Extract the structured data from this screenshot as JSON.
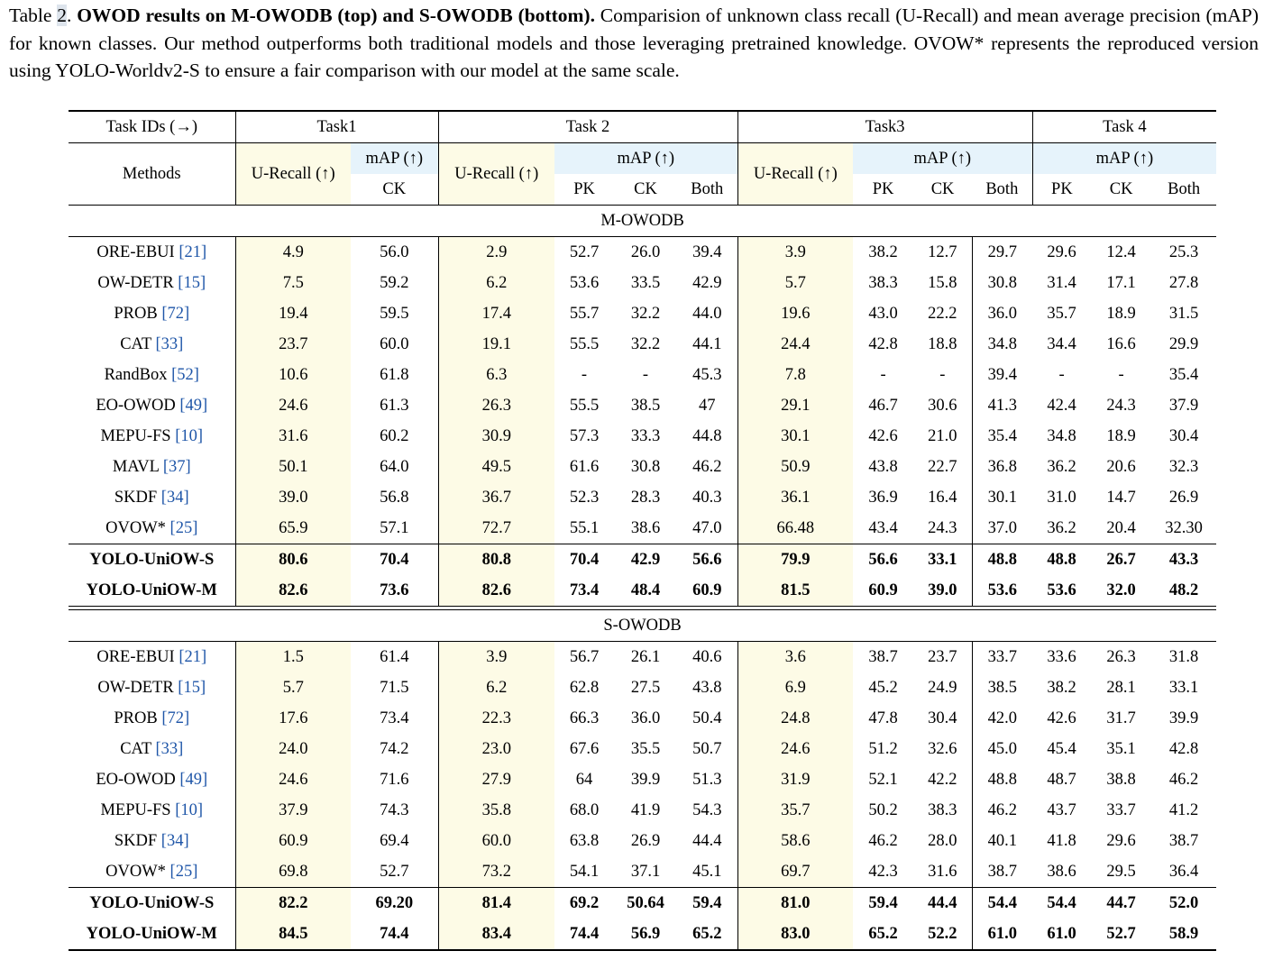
{
  "caption": {
    "label": "Table",
    "number": "2",
    "title": "OWOD results on M-OWODB (top) and S-OWODB (bottom).",
    "text": " Comparision of unknown class recall (U-Recall) and mean average precision (mAP) for known classes. Our method outperforms both traditional models and those leveraging pretrained knowledge. OVOW* represents the reproduced version using YOLO-Worldv2-S to ensure a fair comparison with our model at the same scale."
  },
  "header": {
    "task_ids": "Task IDs (→)",
    "methods": "Methods",
    "tasks": [
      "Task1",
      "Task 2",
      "Task3",
      "Task 4"
    ],
    "u_recall": "U-Recall (↑)",
    "map": "mAP (↑)",
    "pk": "PK",
    "ck": "CK",
    "both": "Both"
  },
  "sections": [
    {
      "name": "M-OWODB",
      "rows": [
        {
          "method": "ORE-EBUI",
          "ref": "[21]",
          "v": [
            "4.9",
            "56.0",
            "2.9",
            "52.7",
            "26.0",
            "39.4",
            "3.9",
            "38.2",
            "12.7",
            "29.7",
            "29.6",
            "12.4",
            "25.3"
          ]
        },
        {
          "method": "OW-DETR",
          "ref": "[15]",
          "v": [
            "7.5",
            "59.2",
            "6.2",
            "53.6",
            "33.5",
            "42.9",
            "5.7",
            "38.3",
            "15.8",
            "30.8",
            "31.4",
            "17.1",
            "27.8"
          ]
        },
        {
          "method": "PROB",
          "ref": "[72]",
          "v": [
            "19.4",
            "59.5",
            "17.4",
            "55.7",
            "32.2",
            "44.0",
            "19.6",
            "43.0",
            "22.2",
            "36.0",
            "35.7",
            "18.9",
            "31.5"
          ]
        },
        {
          "method": "CAT",
          "ref": "[33]",
          "v": [
            "23.7",
            "60.0",
            "19.1",
            "55.5",
            "32.2",
            "44.1",
            "24.4",
            "42.8",
            "18.8",
            "34.8",
            "34.4",
            "16.6",
            "29.9"
          ]
        },
        {
          "method": "RandBox",
          "ref": "[52]",
          "v": [
            "10.6",
            "61.8",
            "6.3",
            "-",
            "-",
            "45.3",
            "7.8",
            "-",
            "-",
            "39.4",
            "-",
            "-",
            "35.4"
          ]
        },
        {
          "method": "EO-OWOD",
          "ref": "[49]",
          "v": [
            "24.6",
            "61.3",
            "26.3",
            "55.5",
            "38.5",
            "47",
            "29.1",
            "46.7",
            "30.6",
            "41.3",
            "42.4",
            "24.3",
            "37.9"
          ]
        },
        {
          "method": "MEPU-FS",
          "ref": "[10]",
          "v": [
            "31.6",
            "60.2",
            "30.9",
            "57.3",
            "33.3",
            "44.8",
            "30.1",
            "42.6",
            "21.0",
            "35.4",
            "34.8",
            "18.9",
            "30.4"
          ]
        },
        {
          "method": "MAVL",
          "ref": "[37]",
          "v": [
            "50.1",
            "64.0",
            "49.5",
            "61.6",
            "30.8",
            "46.2",
            "50.9",
            "43.8",
            "22.7",
            "36.8",
            "36.2",
            "20.6",
            "32.3"
          ]
        },
        {
          "method": "SKDF",
          "ref": "[34]",
          "v": [
            "39.0",
            "56.8",
            "36.7",
            "52.3",
            "28.3",
            "40.3",
            "36.1",
            "36.9",
            "16.4",
            "30.1",
            "31.0",
            "14.7",
            "26.9"
          ]
        },
        {
          "method": "OVOW*",
          "ref": "[25]",
          "v": [
            "65.9",
            "57.1",
            "72.7",
            "55.1",
            "38.6",
            "47.0",
            "66.48",
            "43.4",
            "24.3",
            "37.0",
            "36.2",
            "20.4",
            "32.30"
          ]
        }
      ],
      "ours": [
        {
          "method": "YOLO-UniOW-S",
          "v": [
            "80.6",
            "70.4",
            "80.8",
            "70.4",
            "42.9",
            "56.6",
            "79.9",
            "56.6",
            "33.1",
            "48.8",
            "48.8",
            "26.7",
            "43.3"
          ]
        },
        {
          "method": "YOLO-UniOW-M",
          "v": [
            "82.6",
            "73.6",
            "82.6",
            "73.4",
            "48.4",
            "60.9",
            "81.5",
            "60.9",
            "39.0",
            "53.6",
            "53.6",
            "32.0",
            "48.2"
          ]
        }
      ]
    },
    {
      "name": "S-OWODB",
      "rows": [
        {
          "method": "ORE-EBUI",
          "ref": "[21]",
          "v": [
            "1.5",
            "61.4",
            "3.9",
            "56.7",
            "26.1",
            "40.6",
            "3.6",
            "38.7",
            "23.7",
            "33.7",
            "33.6",
            "26.3",
            "31.8"
          ]
        },
        {
          "method": "OW-DETR",
          "ref": "[15]",
          "v": [
            "5.7",
            "71.5",
            "6.2",
            "62.8",
            "27.5",
            "43.8",
            "6.9",
            "45.2",
            "24.9",
            "38.5",
            "38.2",
            "28.1",
            "33.1"
          ]
        },
        {
          "method": "PROB",
          "ref": "[72]",
          "v": [
            "17.6",
            "73.4",
            "22.3",
            "66.3",
            "36.0",
            "50.4",
            "24.8",
            "47.8",
            "30.4",
            "42.0",
            "42.6",
            "31.7",
            "39.9"
          ]
        },
        {
          "method": "CAT",
          "ref": "[33]",
          "v": [
            "24.0",
            "74.2",
            "23.0",
            "67.6",
            "35.5",
            "50.7",
            "24.6",
            "51.2",
            "32.6",
            "45.0",
            "45.4",
            "35.1",
            "42.8"
          ]
        },
        {
          "method": "EO-OWOD",
          "ref": "[49]",
          "v": [
            "24.6",
            "71.6",
            "27.9",
            "64",
            "39.9",
            "51.3",
            "31.9",
            "52.1",
            "42.2",
            "48.8",
            "48.7",
            "38.8",
            "46.2"
          ]
        },
        {
          "method": "MEPU-FS",
          "ref": "[10]",
          "v": [
            "37.9",
            "74.3",
            "35.8",
            "68.0",
            "41.9",
            "54.3",
            "35.7",
            "50.2",
            "38.3",
            "46.2",
            "43.7",
            "33.7",
            "41.2"
          ]
        },
        {
          "method": "SKDF",
          "ref": "[34]",
          "v": [
            "60.9",
            "69.4",
            "60.0",
            "63.8",
            "26.9",
            "44.4",
            "58.6",
            "46.2",
            "28.0",
            "40.1",
            "41.8",
            "29.6",
            "38.7"
          ]
        },
        {
          "method": "OVOW*",
          "ref": "[25]",
          "v": [
            "69.8",
            "52.7",
            "73.2",
            "54.1",
            "37.1",
            "45.1",
            "69.7",
            "42.3",
            "31.6",
            "38.7",
            "38.6",
            "29.5",
            "36.4"
          ]
        }
      ],
      "ours": [
        {
          "method": "YOLO-UniOW-S",
          "v": [
            "82.2",
            "69.20",
            "81.4",
            "69.2",
            "50.64",
            "59.4",
            "81.0",
            "59.4",
            "44.4",
            "54.4",
            "54.4",
            "44.7",
            "52.0"
          ]
        },
        {
          "method": "YOLO-UniOW-M",
          "v": [
            "84.5",
            "74.4",
            "83.4",
            "74.4",
            "56.9",
            "65.2",
            "83.0",
            "65.2",
            "52.2",
            "61.0",
            "61.0",
            "52.7",
            "58.9"
          ]
        }
      ]
    }
  ]
}
